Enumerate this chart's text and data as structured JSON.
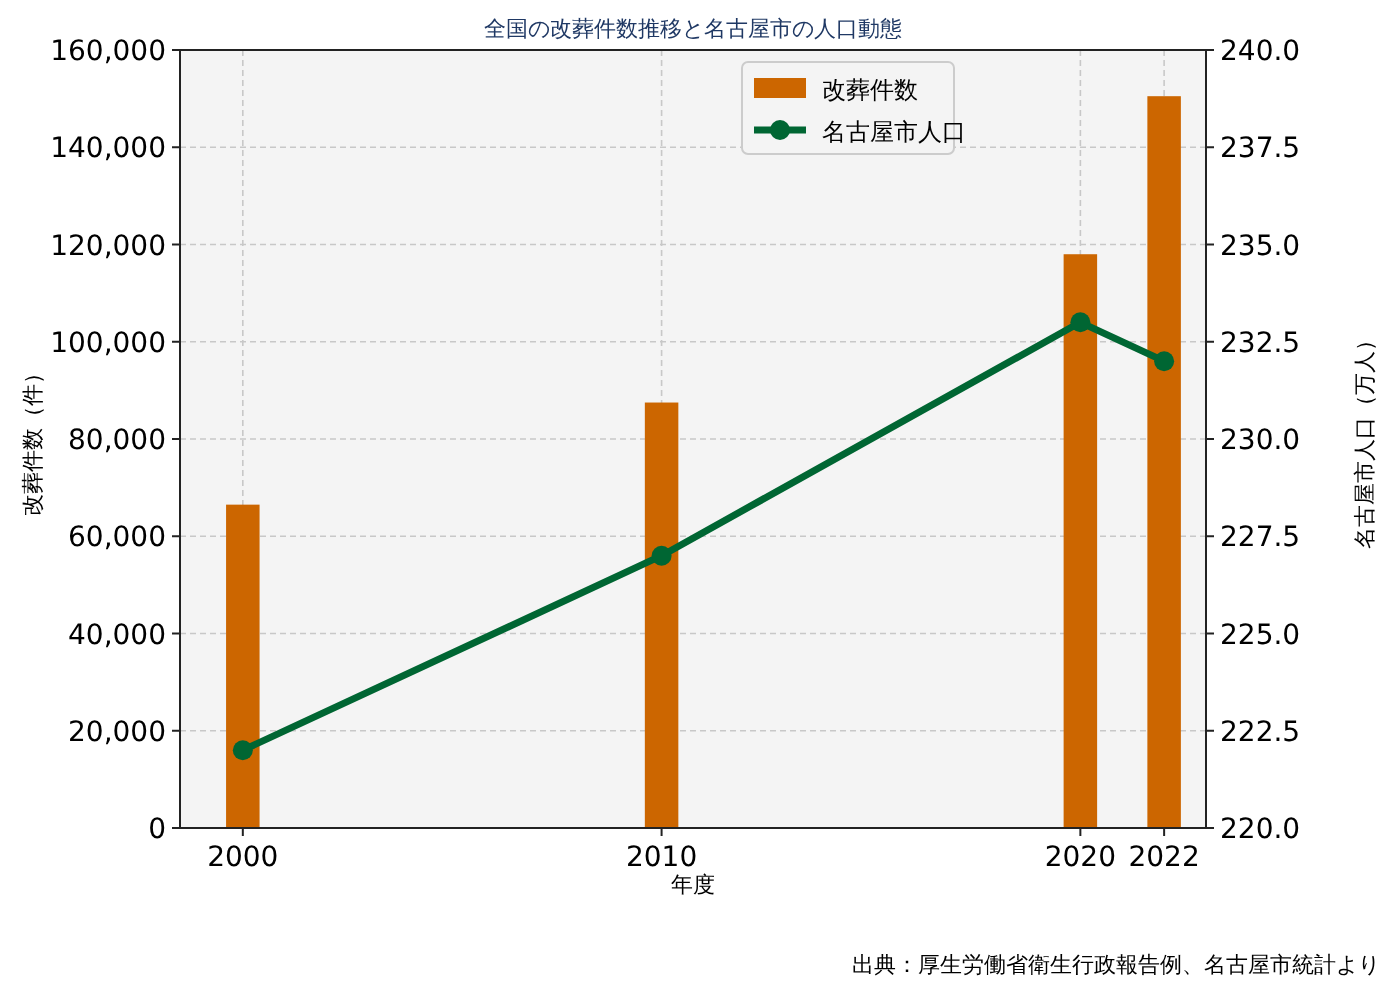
{
  "chart_data": {
    "type": "bar",
    "title": "全国の改葬件数推移と名古屋市の人口動態",
    "xlabel": "年度",
    "ylabel": "改葬件数（件）",
    "y2label": "名古屋市人口（万人）",
    "x": [
      2000,
      2010,
      2020,
      2022
    ],
    "series": [
      {
        "name": "改葬件数",
        "color": "#cc6600",
        "values": [
          66500,
          87500,
          118000,
          150500
        ]
      },
      {
        "name": "名古屋市人口",
        "type": "line",
        "axis": "y2",
        "color": "#006633",
        "marker": "circle",
        "values": [
          222,
          227,
          233,
          232
        ]
      }
    ],
    "xlim": [
      1998.5,
      2023
    ],
    "xticks": [
      2000,
      2010,
      2020,
      2022
    ],
    "ylim": [
      0,
      160000
    ],
    "yticks": [
      0,
      {
        "value": 20000,
        "label": "20,000"
      },
      {
        "value": 40000,
        "label": "40,000"
      },
      {
        "value": 60000,
        "label": "60,000"
      },
      {
        "value": 80000,
        "label": "80,000"
      },
      {
        "value": 100000,
        "label": "100,000"
      },
      {
        "value": 120000,
        "label": "120,000"
      },
      {
        "value": 140000,
        "label": "140,000"
      },
      {
        "value": 160000,
        "label": "160,000"
      }
    ],
    "y2lim": [
      220,
      240
    ],
    "y2ticks": [
      {
        "value": 220,
        "label": "220.0"
      },
      {
        "value": 222.5,
        "label": "222.5"
      },
      {
        "value": 225,
        "label": "225.0"
      },
      {
        "value": 227.5,
        "label": "227.5"
      },
      {
        "value": 230,
        "label": "230.0"
      },
      {
        "value": 232.5,
        "label": "232.5"
      },
      {
        "value": 235,
        "label": "235.0"
      },
      {
        "value": 237.5,
        "label": "237.5"
      },
      {
        "value": 240,
        "label": "240.0"
      }
    ],
    "grid": true,
    "legend": "top right",
    "annotations": [
      "出典：厚生労働省衛生行政報告例、名古屋市統計より"
    ]
  }
}
